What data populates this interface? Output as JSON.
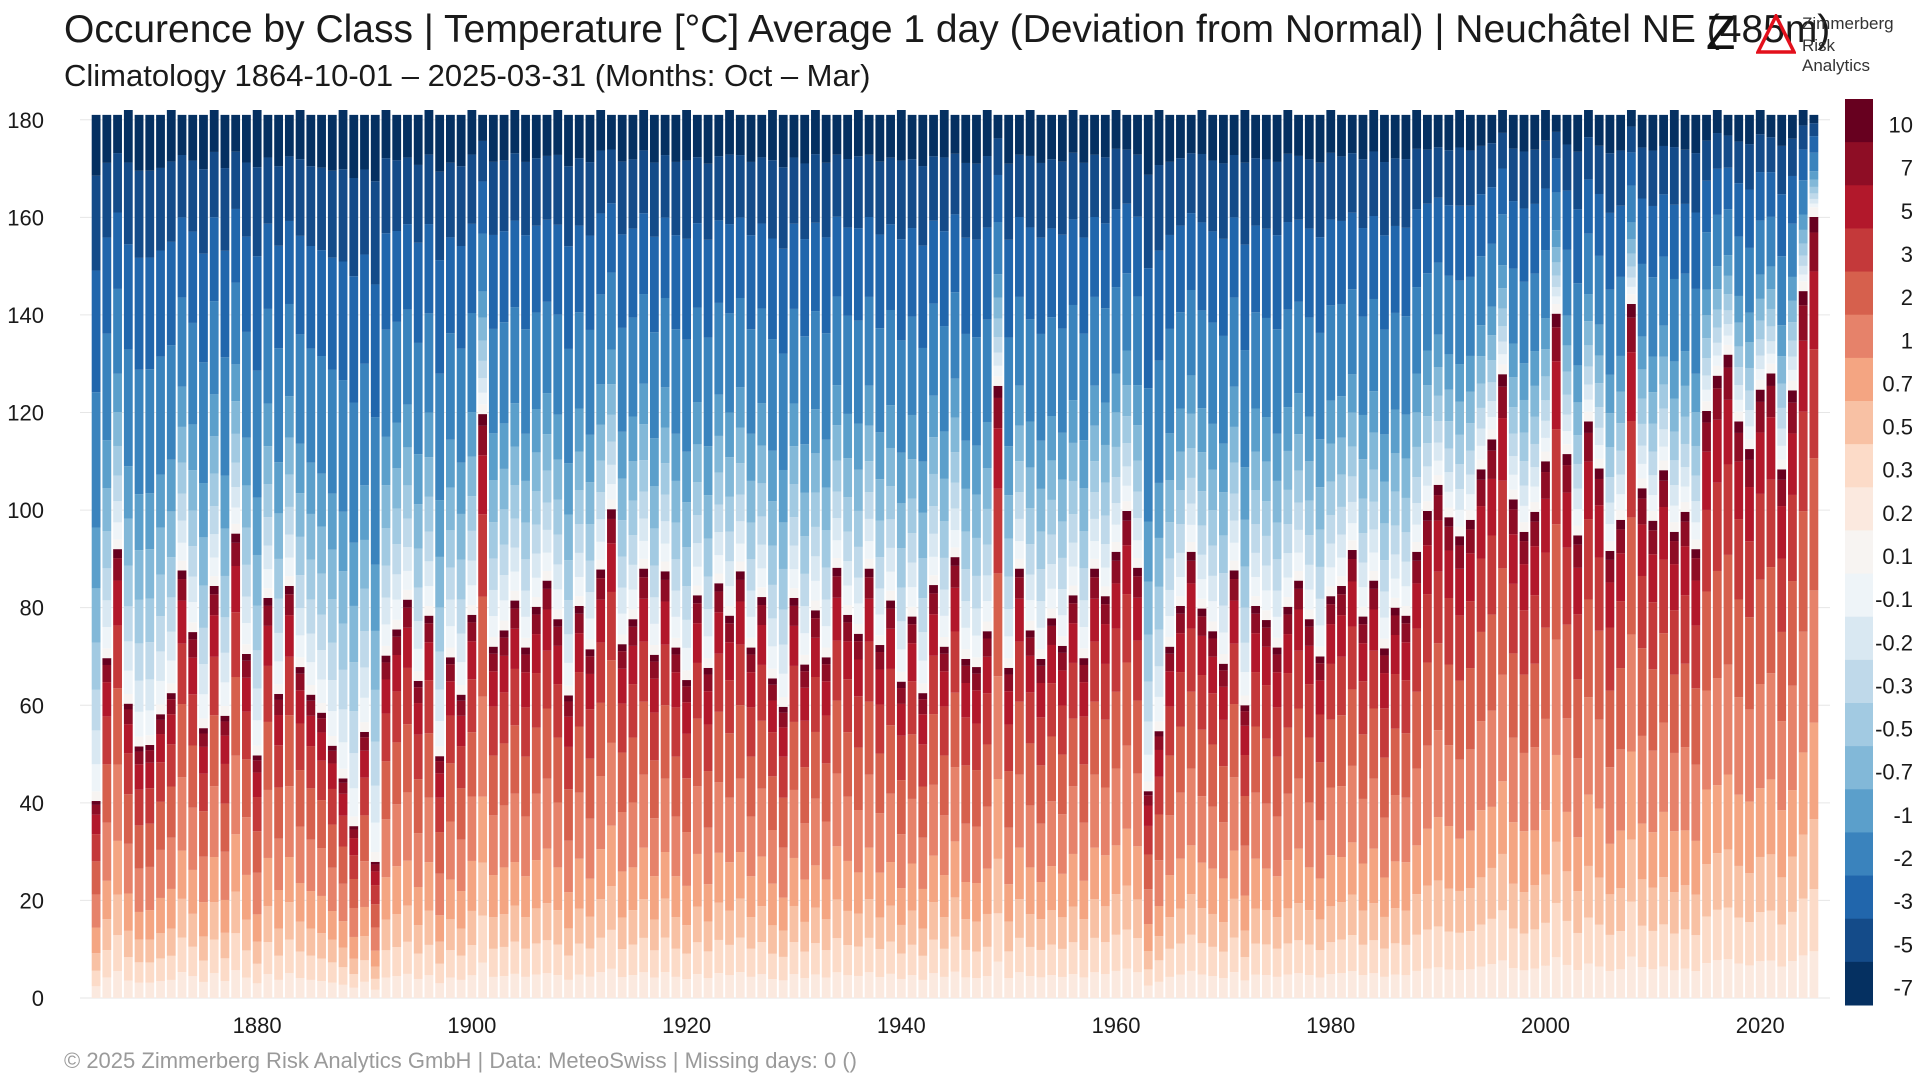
{
  "title": "Occurence by Class | Temperature [°C] Average 1 day (Deviation from Normal) | Neuchâtel  NE (485m)",
  "subtitle": "Climatology 1864-10-01 – 2025-03-31 (Months: Oct – Mar)",
  "footer": "©  2025 Zimmerberg Risk Analytics GmbH | Data: MeteoSwiss | Missing days: 0 ()",
  "logo": {
    "mark": "Z",
    "line1": "Zimmerberg",
    "line2": "Risk Analytics"
  },
  "chart_data": {
    "type": "bar",
    "stacked": true,
    "x_first_season": 1865,
    "x_last_season": 2025,
    "xlim": [
      1863.5,
      2026.5
    ],
    "ylim": [
      0,
      182
    ],
    "y_ticks": [
      0,
      20,
      40,
      60,
      80,
      100,
      120,
      140,
      160,
      180
    ],
    "x_ticks": [
      1880,
      1900,
      1920,
      1940,
      1960,
      1980,
      2000,
      2020
    ],
    "grid": true,
    "legend_position": "right (colorbar)",
    "class_labels": [
      "10",
      "7",
      "5",
      "3",
      "2",
      "1",
      "0.7",
      "0.5",
      "0.3",
      "0.2",
      "0.1",
      "-0.1",
      "-0.2",
      "-0.3",
      "-0.5",
      "-0.7",
      "-1",
      "-2",
      "-3",
      "-5",
      "-7"
    ],
    "class_colors": [
      "#67001f",
      "#8e0d25",
      "#b2182b",
      "#c4393a",
      "#d6604d",
      "#e6826a",
      "#f4a582",
      "#f8c1a4",
      "#fcdbc8",
      "#fbe9df",
      "#f7f4f2",
      "#eef4f8",
      "#d9e8f2",
      "#bfd9ea",
      "#a2cae2",
      "#82b8d8",
      "#5b9fcb",
      "#3a83bd",
      "#2166ac",
      "#144b89",
      "#053061"
    ],
    "warm_days_by_season": {
      "1865": 40,
      "1866": 70,
      "1867": 92,
      "1868": 60,
      "1869": 52,
      "1870": 52,
      "1871": 58,
      "1872": 62,
      "1873": 88,
      "1874": 75,
      "1875": 55,
      "1876": 85,
      "1877": 58,
      "1878": 95,
      "1879": 70,
      "1880": 50,
      "1881": 82,
      "1882": 62,
      "1883": 85,
      "1884": 68,
      "1885": 62,
      "1886": 58,
      "1887": 52,
      "1888": 45,
      "1889": 35,
      "1890": 55,
      "1891": 28,
      "1892": 70,
      "1893": 75,
      "1894": 82,
      "1895": 65,
      "1896": 78,
      "1897": 50,
      "1898": 70,
      "1899": 62,
      "1900": 78,
      "1901": 120,
      "1902": 72,
      "1903": 75,
      "1904": 82,
      "1905": 72,
      "1906": 80,
      "1907": 85,
      "1908": 78,
      "1909": 62,
      "1910": 80,
      "1911": 72,
      "1912": 88,
      "1913": 100,
      "1914": 72,
      "1915": 78,
      "1916": 88,
      "1917": 70,
      "1918": 88,
      "1919": 72,
      "1920": 65,
      "1921": 82,
      "1922": 68,
      "1923": 85,
      "1924": 78,
      "1925": 88,
      "1926": 72,
      "1927": 82,
      "1928": 65,
      "1929": 60,
      "1930": 82,
      "1931": 68,
      "1932": 80,
      "1933": 70,
      "1934": 88,
      "1935": 78,
      "1936": 75,
      "1937": 88,
      "1938": 72,
      "1939": 82,
      "1940": 65,
      "1941": 78,
      "1942": 62,
      "1943": 85,
      "1944": 72,
      "1945": 90,
      "1946": 70,
      "1947": 68,
      "1948": 75,
      "1949": 125,
      "1950": 68,
      "1951": 88,
      "1952": 75,
      "1953": 70,
      "1954": 78,
      "1955": 72,
      "1956": 82,
      "1957": 70,
      "1958": 88,
      "1959": 82,
      "1960": 92,
      "1961": 100,
      "1962": 88,
      "1963": 42,
      "1964": 55,
      "1965": 72,
      "1966": 80,
      "1967": 92,
      "1968": 80,
      "1969": 75,
      "1970": 68,
      "1971": 88,
      "1972": 60,
      "1973": 80,
      "1974": 78,
      "1975": 72,
      "1976": 80,
      "1977": 85,
      "1978": 78,
      "1979": 70,
      "1980": 82,
      "1981": 85,
      "1982": 92,
      "1983": 78,
      "1984": 85,
      "1985": 72,
      "1986": 80,
      "1987": 78,
      "1988": 92,
      "1989": 100,
      "1990": 105,
      "1991": 98,
      "1992": 95,
      "1993": 98,
      "1994": 108,
      "1995": 115,
      "1996": 128,
      "1997": 102,
      "1998": 95,
      "1999": 100,
      "2000": 110,
      "2001": 140,
      "2002": 112,
      "2003": 95,
      "2004": 118,
      "2005": 108,
      "2006": 92,
      "2007": 98,
      "2008": 142,
      "2009": 105,
      "2010": 98,
      "2011": 108,
      "2012": 95,
      "2013": 100,
      "2014": 92,
      "2015": 120,
      "2016": 128,
      "2017": 132,
      "2018": 118,
      "2019": 112,
      "2020": 125,
      "2021": 128,
      "2022": 108,
      "2023": 125,
      "2024": 145,
      "2025": 160
    }
  }
}
